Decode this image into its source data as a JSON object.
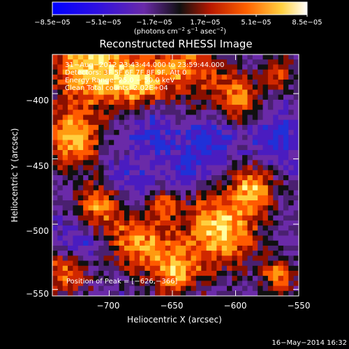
{
  "chart_data": {
    "type": "heatmap",
    "title": "Reconstructed RHESSI Image",
    "xlabel": "Heliocentric X (arcsec)",
    "ylabel": "Heliocentric Y (arcsec)",
    "xlim": [
      -745,
      -550
    ],
    "ylim": [
      -555,
      -370
    ],
    "xticks": [
      -700,
      -650,
      -600,
      -550
    ],
    "xtick_labels": [
      "−700",
      "−650",
      "−600",
      "−550"
    ],
    "yticks": [
      -400,
      -450,
      -500,
      -550
    ],
    "ytick_labels": [
      "−400",
      "−450",
      "−500",
      "−550"
    ],
    "colorbar": {
      "ticks": [
        -8.5e-05,
        -5.1e-05,
        -1.7e-05,
        1.7e-05,
        5.1e-05,
        8.5e-05
      ],
      "tick_labels": [
        "−8.5e−05",
        "−5.1e−05",
        "−1.7e−05",
        "1.7e−05",
        "5.1e−05",
        "8.5e−05"
      ],
      "units_base": "(photons cm",
      "units_exp1": "−2",
      "units_mid": " s",
      "units_exp2": "−1",
      "units_mid2": " asec",
      "units_exp3": "−2",
      "units_end": ")",
      "colors": [
        "#0000ff",
        "#4000d0",
        "#7030a0",
        "#101010",
        "#cc2000",
        "#ff8800",
        "#ffff60",
        "#ffffff"
      ]
    },
    "annotations": [
      "31−Aug−2012 23:43:44.000 to 23:59:44.000",
      "Detectors: 3F 5F 6F 7F 8F 9F, Att 0",
      "Energy Range: 25.0 − 50.0 keV",
      "Clean    Total counts: 2.02E+04"
    ],
    "peak_label": "Position of Peak = [−626,−366]",
    "peak": [
      -626,
      -366
    ]
  },
  "footer": {
    "timestamp": "16−May−2014 16:32"
  }
}
